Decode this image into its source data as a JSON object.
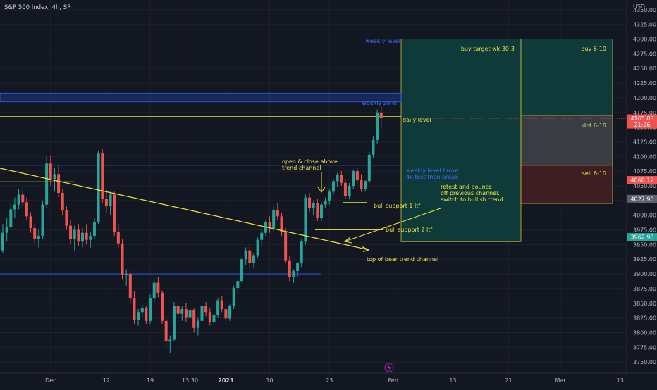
{
  "header": {
    "symbol_title": "S&P 500 Index, 4h, SP"
  },
  "currency_label": "USD",
  "colors": {
    "background": "#131722",
    "grid": "#1e222d",
    "up": "#26a69a",
    "down": "#ef5350",
    "annotation_yellow": "#f0e442",
    "weekly_blue": "#2962ff",
    "weekly_text": "#3d6eff",
    "target_box": "#0f3a3a",
    "dnt_box": "#3a3c44",
    "sell_box": "#3e1e22"
  },
  "chart_data": {
    "type": "candlestick",
    "ylim": [
      3725,
      4375
    ],
    "y_ticks": [
      3750,
      3775,
      3800,
      3825,
      3850,
      3875,
      3900,
      3925,
      3950,
      3975,
      4000,
      4025,
      4050,
      4075,
      4100,
      4125,
      4150,
      4175,
      4200,
      4225,
      4250,
      4275,
      4300,
      4325,
      4350
    ],
    "x_ticks": [
      "Dec",
      "12",
      "19",
      "13:30",
      "2023",
      "10",
      "23",
      "Feb",
      "13",
      "21",
      "Mar",
      "13"
    ],
    "x_tick_index": [
      12,
      26,
      37,
      47,
      56,
      67,
      82,
      98,
      113,
      127,
      140,
      155
    ],
    "price_labels": [
      {
        "value": 4165.03,
        "text": "4165.03",
        "sub": "21:26",
        "color": "#ef5350"
      },
      {
        "value": 4060.12,
        "text": "4060.12",
        "color": "#ef5350"
      },
      {
        "value": 4027.98,
        "text": "4027.98",
        "color": "#5d606b"
      },
      {
        "value": 3962.98,
        "text": "3962.98",
        "color": "#26a69a"
      }
    ],
    "levels": [
      {
        "name": "weekly level",
        "value": 4300,
        "color": "#2962ff"
      },
      {
        "name": "weekly zone",
        "from": 4193,
        "to": 4208,
        "color": "#2962ff"
      },
      {
        "name": "daily level",
        "value": 4168,
        "color": "#f0e442"
      },
      {
        "name": "weekly level broke",
        "value": 4085,
        "color": "#2962ff"
      },
      {
        "name": "lower weekly level",
        "value": 3900,
        "color": "#2962ff"
      }
    ],
    "annotations": {
      "weekly_level": "weekly level",
      "weekly_zone": "weekly zone",
      "daily_level": "daily level",
      "weekly_broke_1": "weekly level broke",
      "weekly_broke_2": "4x test then break",
      "open_close_1": "open & close above",
      "open_close_2": "trend channel",
      "retest_1": "retest and bounce",
      "retest_2": "off previous channel.",
      "retest_3": "switch to bullish trend",
      "bull_support_1": "bull support 1 ltf",
      "bull_support_2": "bull support 2 ltf",
      "bear_channel": "top of bear trend channel",
      "buy_target": "buy target wk 30-3",
      "buy": "buy 6-10",
      "dnt": "dnt 6-10",
      "sell": "sell 6-10"
    },
    "trade_boxes": [
      {
        "name": "buy target wk 30-3",
        "top": 4300,
        "bottom": 3955
      },
      {
        "name": "buy 6-10",
        "top": 4300,
        "bottom": 4170
      },
      {
        "name": "dnt 6-10",
        "top": 4170,
        "bottom": 4085
      },
      {
        "name": "sell 6-10",
        "top": 4085,
        "bottom": 4020
      }
    ],
    "bull_support_levels": [
      4022,
      3975
    ],
    "bear_channel_line": {
      "start": [
        -1,
        4080
      ],
      "end": [
        94,
        3940
      ]
    },
    "candles": [
      [
        3940,
        3985,
        3935,
        3970
      ],
      [
        3970,
        3995,
        3955,
        3980
      ],
      [
        3980,
        4020,
        3975,
        4010
      ],
      [
        4010,
        4030,
        3995,
        4018
      ],
      [
        4018,
        4045,
        4010,
        4035
      ],
      [
        4035,
        4042,
        4015,
        4022
      ],
      [
        4022,
        4030,
        3992,
        3998
      ],
      [
        3998,
        4005,
        3970,
        3978
      ],
      [
        3978,
        3985,
        3950,
        3960
      ],
      [
        3960,
        3975,
        3945,
        3965
      ],
      [
        3965,
        4025,
        3960,
        4018
      ],
      [
        4018,
        4100,
        4012,
        4088
      ],
      [
        4088,
        4102,
        4050,
        4062
      ],
      [
        4062,
        4080,
        4040,
        4070
      ],
      [
        4070,
        4085,
        4030,
        4038
      ],
      [
        4038,
        4045,
        4000,
        4008
      ],
      [
        4008,
        4015,
        3975,
        3982
      ],
      [
        3982,
        3992,
        3950,
        3960
      ],
      [
        3960,
        3982,
        3940,
        3975
      ],
      [
        3975,
        3985,
        3948,
        3955
      ],
      [
        3955,
        3978,
        3945,
        3970
      ],
      [
        3970,
        3985,
        3950,
        3958
      ],
      [
        3958,
        3972,
        3945,
        3965
      ],
      [
        3965,
        3995,
        3960,
        3988
      ],
      [
        3988,
        4110,
        3985,
        4105
      ],
      [
        4105,
        4112,
        4020,
        4028
      ],
      [
        4028,
        4045,
        4005,
        4015
      ],
      [
        4015,
        4040,
        4000,
        4035
      ],
      [
        4035,
        4040,
        3965,
        3972
      ],
      [
        3972,
        3985,
        3945,
        3952
      ],
      [
        3952,
        3960,
        3890,
        3898
      ],
      [
        3898,
        3908,
        3880,
        3900
      ],
      [
        3900,
        3905,
        3850,
        3858
      ],
      [
        3858,
        3870,
        3815,
        3822
      ],
      [
        3822,
        3840,
        3812,
        3835
      ],
      [
        3835,
        3848,
        3825,
        3842
      ],
      [
        3842,
        3846,
        3815,
        3820
      ],
      [
        3820,
        3865,
        3815,
        3858
      ],
      [
        3858,
        3892,
        3852,
        3885
      ],
      [
        3885,
        3895,
        3860,
        3868
      ],
      [
        3868,
        3872,
        3815,
        3820
      ],
      [
        3820,
        3828,
        3775,
        3785
      ],
      [
        3785,
        3795,
        3765,
        3788
      ],
      [
        3788,
        3852,
        3785,
        3845
      ],
      [
        3845,
        3855,
        3828,
        3832
      ],
      [
        3832,
        3845,
        3820,
        3840
      ],
      [
        3840,
        3850,
        3818,
        3825
      ],
      [
        3825,
        3845,
        3820,
        3838
      ],
      [
        3838,
        3842,
        3800,
        3808
      ],
      [
        3808,
        3825,
        3795,
        3820
      ],
      [
        3820,
        3848,
        3815,
        3845
      ],
      [
        3845,
        3852,
        3828,
        3835
      ],
      [
        3835,
        3842,
        3812,
        3818
      ],
      [
        3818,
        3835,
        3805,
        3830
      ],
      [
        3830,
        3858,
        3825,
        3855
      ],
      [
        3855,
        3862,
        3835,
        3840
      ],
      [
        3840,
        3852,
        3818,
        3824
      ],
      [
        3824,
        3848,
        3820,
        3845
      ],
      [
        3845,
        3880,
        3840,
        3876
      ],
      [
        3876,
        3890,
        3865,
        3888
      ],
      [
        3888,
        3928,
        3885,
        3925
      ],
      [
        3925,
        3945,
        3915,
        3940
      ],
      [
        3940,
        3952,
        3910,
        3918
      ],
      [
        3918,
        3935,
        3910,
        3932
      ],
      [
        3932,
        3962,
        3928,
        3958
      ],
      [
        3958,
        3975,
        3948,
        3970
      ],
      [
        3970,
        3992,
        3965,
        3988
      ],
      [
        3988,
        3998,
        3970,
        3978
      ],
      [
        3978,
        4015,
        3972,
        4008
      ],
      [
        4008,
        4020,
        3992,
        3998
      ],
      [
        3998,
        4004,
        3965,
        3972
      ],
      [
        3972,
        3978,
        3918,
        3922
      ],
      [
        3922,
        3930,
        3888,
        3895
      ],
      [
        3895,
        3908,
        3885,
        3905
      ],
      [
        3905,
        3920,
        3895,
        3918
      ],
      [
        3918,
        3960,
        3912,
        3955
      ],
      [
        3955,
        4035,
        3950,
        4030
      ],
      [
        4030,
        4038,
        4005,
        4012
      ],
      [
        4012,
        4025,
        4000,
        4020
      ],
      [
        4020,
        4028,
        3990,
        3995
      ],
      [
        3995,
        4022,
        3990,
        4018
      ],
      [
        4018,
        4030,
        4012,
        4025
      ],
      [
        4025,
        4045,
        4018,
        4040
      ],
      [
        4040,
        4062,
        4035,
        4058
      ],
      [
        4058,
        4072,
        4048,
        4068
      ],
      [
        4068,
        4075,
        4050,
        4055
      ],
      [
        4055,
        4062,
        4028,
        4032
      ],
      [
        4032,
        4055,
        4028,
        4050
      ],
      [
        4050,
        4078,
        4045,
        4075
      ],
      [
        4075,
        4080,
        4055,
        4060
      ],
      [
        4060,
        4070,
        4040,
        4045
      ],
      [
        4045,
        4060,
        4040,
        4058
      ],
      [
        4058,
        4108,
        4055,
        4103
      ],
      [
        4103,
        4135,
        4098,
        4128
      ],
      [
        4128,
        4180,
        4122,
        4175
      ],
      [
        4175,
        4185,
        4148,
        4165
      ]
    ]
  }
}
